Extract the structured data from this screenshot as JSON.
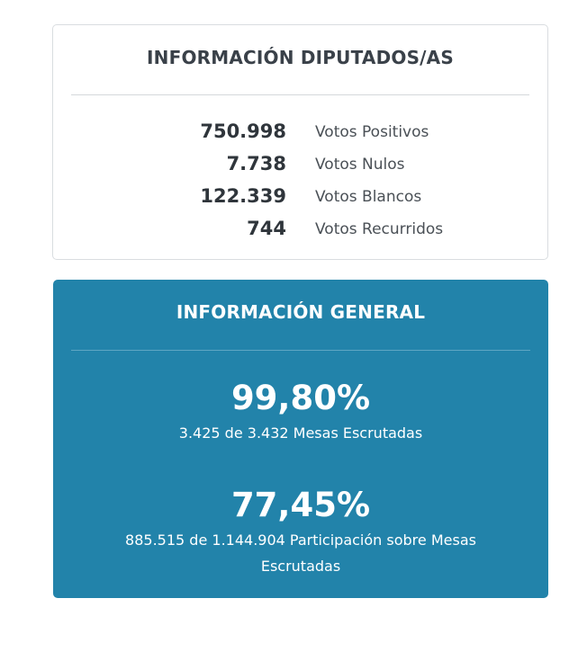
{
  "diputados": {
    "title": "INFORMACIÓN DIPUTADOS/AS",
    "rows": [
      {
        "value": "750.998",
        "label": "Votos Positivos"
      },
      {
        "value": "7.738",
        "label": "Votos Nulos"
      },
      {
        "value": "122.339",
        "label": "Votos Blancos"
      },
      {
        "value": "744",
        "label": "Votos Recurridos"
      }
    ]
  },
  "general": {
    "title": "INFORMACIÓN GENERAL",
    "background_color": "#2283aa",
    "mesas": {
      "percent": "99,80%",
      "caption": "3.425 de 3.432 Mesas Escrutadas"
    },
    "participacion": {
      "percent": "77,45%",
      "caption": "885.515 de 1.144.904 Participación sobre Mesas Escrutadas"
    }
  }
}
